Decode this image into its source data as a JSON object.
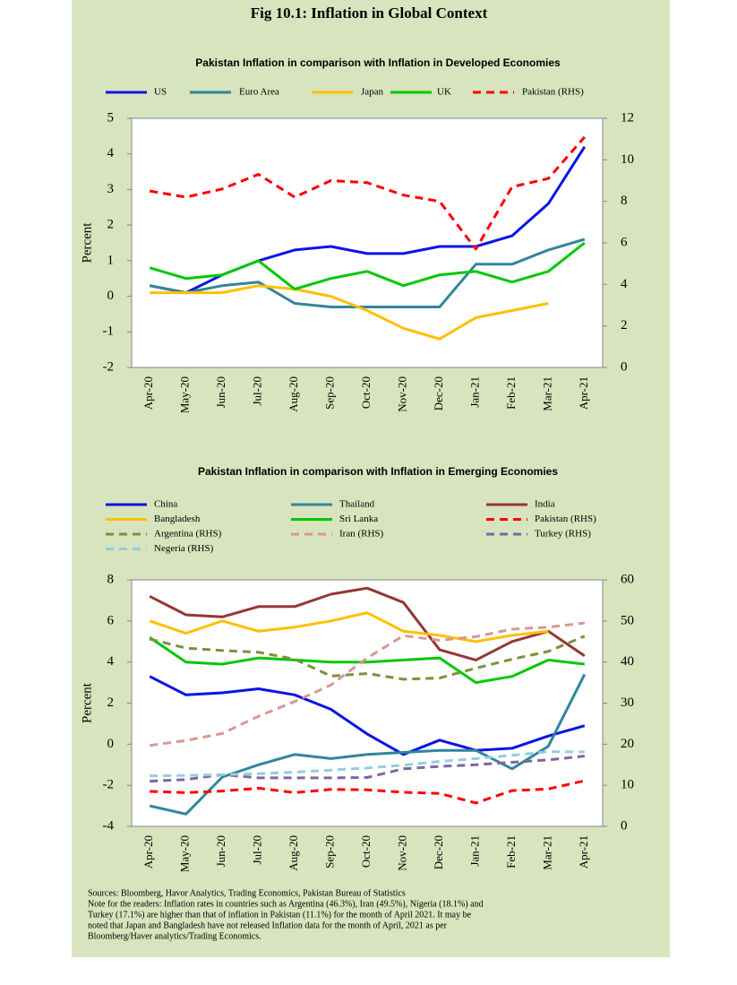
{
  "title": "Fig 10.1: Inflation in Global Context",
  "sources": "Sources: Bloomberg, Havor Analytics, Trading Economics, Pakistan Bureau of Statistics",
  "note": [
    "Note for the readers: Inflation rates in countries such as Argentina (46.3%), Iran (49.5%), Nigeria (18.1%) and",
    "Turkey (17.1%) are higher than that of inflation in Pakistan (11.1%) for the month of April 2021. It may be",
    "noted that Japan and Bangladesh have not released Inflation data for the month of April, 2021 as per",
    "Bloomberg/Haver analytics/Trading Economics."
  ],
  "chart_data": [
    {
      "type": "line",
      "title": "Pakistan Inflation in comparison with Inflation in Developed Economies",
      "y_label": "Percent",
      "categories": [
        "Apr-20",
        "May-20",
        "Jun-20",
        "Jul-20",
        "Aug-20",
        "Sep-20",
        "Oct-20",
        "Nov-20",
        "Dec-20",
        "Jan-21",
        "Feb-21",
        "Mar-21",
        "Apr-21"
      ],
      "ylim": [
        -2,
        5
      ],
      "yticks": [
        -2,
        -1,
        0,
        1,
        2,
        3,
        4,
        5
      ],
      "y2lim": [
        0,
        12
      ],
      "y2ticks": [
        0,
        2,
        4,
        6,
        8,
        10,
        12
      ],
      "series": [
        {
          "name": "US",
          "color": "#0a14e6",
          "values": [
            0.3,
            0.1,
            0.6,
            1.0,
            1.3,
            1.4,
            1.2,
            1.2,
            1.4,
            1.4,
            1.7,
            2.6,
            4.2
          ]
        },
        {
          "name": "Euro Area",
          "color": "#31859c",
          "values": [
            0.3,
            0.1,
            0.3,
            0.4,
            -0.2,
            -0.3,
            -0.3,
            -0.3,
            -0.3,
            0.9,
            0.9,
            1.3,
            1.6
          ]
        },
        {
          "name": "Japan",
          "color": "#ffc000",
          "values": [
            0.1,
            0.1,
            0.1,
            0.3,
            0.2,
            0.0,
            -0.4,
            -0.9,
            -1.2,
            -0.6,
            -0.4,
            -0.2,
            null
          ]
        },
        {
          "name": "UK",
          "color": "#00c800",
          "values": [
            0.8,
            0.5,
            0.6,
            1.0,
            0.2,
            0.5,
            0.7,
            0.3,
            0.6,
            0.7,
            0.4,
            0.7,
            1.5
          ]
        },
        {
          "name": "Pakistan (RHS)",
          "color": "#ff0000",
          "dashed": true,
          "axis": "y2",
          "values": [
            8.5,
            8.2,
            8.6,
            9.3,
            8.2,
            9.0,
            8.9,
            8.3,
            8.0,
            5.7,
            8.7,
            9.1,
            11.1
          ]
        }
      ]
    },
    {
      "type": "line",
      "title": "Pakistan Inflation in comparison with Inflation in Emerging Economies",
      "y_label": "Percent",
      "categories": [
        "Apr-20",
        "May-20",
        "Jun-20",
        "Jul-20",
        "Aug-20",
        "Sep-20",
        "Oct-20",
        "Nov-20",
        "Dec-20",
        "Jan-21",
        "Feb-21",
        "Mar-21",
        "Apr-21"
      ],
      "ylim": [
        -4,
        8
      ],
      "yticks": [
        -4,
        -2,
        0,
        2,
        4,
        6,
        8
      ],
      "y2lim": [
        0,
        60
      ],
      "y2ticks": [
        0,
        10,
        20,
        30,
        40,
        50,
        60
      ],
      "series": [
        {
          "name": "China",
          "color": "#0a14e6",
          "values": [
            3.3,
            2.4,
            2.5,
            2.7,
            2.4,
            1.7,
            0.5,
            -0.5,
            0.2,
            -0.3,
            -0.2,
            0.4,
            0.9
          ]
        },
        {
          "name": "Thailand",
          "color": "#31859c",
          "values": [
            -3.0,
            -3.4,
            -1.6,
            -1.0,
            -0.5,
            -0.7,
            -0.5,
            -0.4,
            -0.3,
            -0.3,
            -1.2,
            -0.1,
            3.4
          ]
        },
        {
          "name": "India",
          "color": "#953735",
          "values": [
            7.2,
            6.3,
            6.2,
            6.7,
            6.7,
            7.3,
            7.6,
            6.9,
            4.6,
            4.1,
            5.0,
            5.5,
            4.3
          ]
        },
        {
          "name": "Bangladesh",
          "color": "#ffc000",
          "values": [
            6.0,
            5.4,
            6.0,
            5.5,
            5.7,
            6.0,
            6.4,
            5.5,
            5.3,
            5.0,
            5.3,
            5.5,
            null
          ]
        },
        {
          "name": "Sri Lanka",
          "color": "#00c800",
          "values": [
            5.2,
            4.0,
            3.9,
            4.2,
            4.1,
            4.0,
            4.0,
            4.1,
            4.2,
            3.0,
            3.3,
            4.1,
            3.9
          ]
        },
        {
          "name": "Pakistan (RHS)",
          "color": "#ff0000",
          "dashed": true,
          "axis": "y2",
          "values": [
            8.5,
            8.2,
            8.6,
            9.3,
            8.2,
            9.0,
            8.9,
            8.3,
            8.0,
            5.7,
            8.7,
            9.1,
            11.1
          ]
        },
        {
          "name": "Argentina (RHS)",
          "color": "#77933c",
          "dashed": true,
          "axis": "y2",
          "values": [
            45.6,
            43.4,
            42.8,
            42.4,
            40.7,
            36.6,
            37.2,
            35.8,
            36.1,
            38.5,
            40.7,
            42.6,
            46.3
          ]
        },
        {
          "name": "Iran (RHS)",
          "color": "#d99694",
          "dashed": true,
          "axis": "y2",
          "values": [
            19.7,
            20.9,
            22.6,
            26.8,
            30.4,
            34.4,
            41.0,
            46.4,
            45.3,
            46.2,
            48.0,
            48.5,
            49.5
          ]
        },
        {
          "name": "Turkey (RHS)",
          "color": "#8064a2",
          "dashed": true,
          "axis": "y2",
          "values": [
            11.0,
            11.4,
            12.6,
            11.8,
            11.8,
            11.8,
            11.9,
            14.0,
            14.6,
            15.0,
            15.6,
            16.2,
            17.1
          ]
        },
        {
          "name": "Negeria (RHS)",
          "color": "#93cddd",
          "dashed": true,
          "axis": "y2",
          "values": [
            12.3,
            12.4,
            12.6,
            12.8,
            13.2,
            13.7,
            14.2,
            14.9,
            15.8,
            16.5,
            17.3,
            18.2,
            18.1
          ]
        }
      ]
    }
  ]
}
